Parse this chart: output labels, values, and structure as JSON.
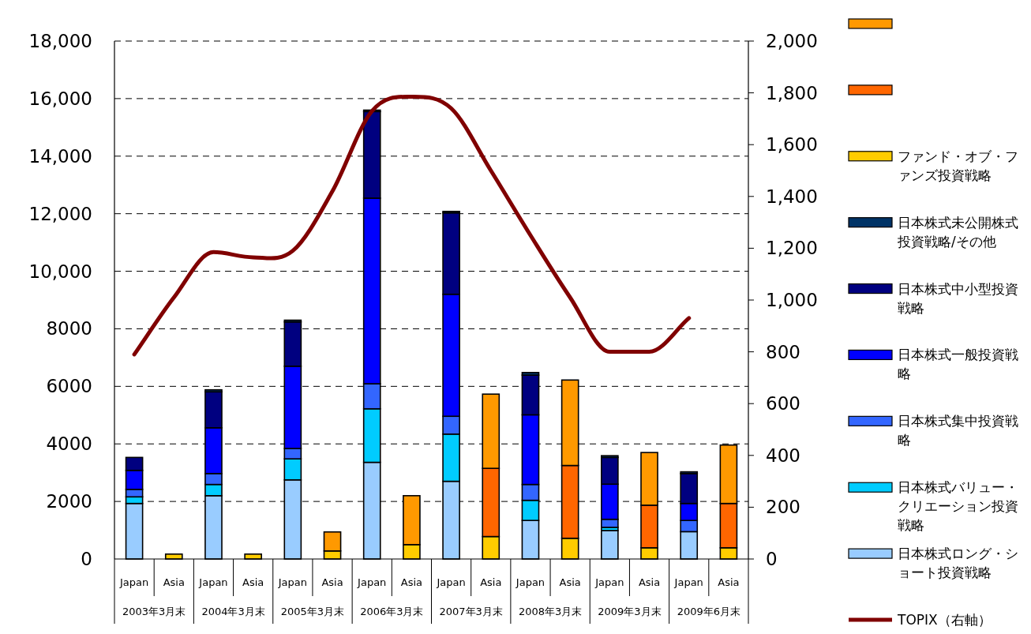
{
  "chart_data": {
    "type": "bar",
    "stacked": true,
    "categories": [
      "Japan",
      "Asia",
      "Japan",
      "Asia",
      "Japan",
      "Asia",
      "Japan",
      "Asia",
      "Japan",
      "Asia",
      "Japan",
      "Asia",
      "Japan",
      "Asia",
      "Japan",
      "Asia"
    ],
    "annotations": [
      "2003年3月末",
      "2004年3月末",
      "2005年3月末",
      "2006年3月末",
      "2007年3月末",
      "2008年3月末",
      "2009年3月末",
      "2009年6月末"
    ],
    "ylim": [
      0,
      18000
    ],
    "yticks": [
      0,
      2000,
      4000,
      6000,
      8000,
      {
        "value": 10000,
        "label": "10,000"
      },
      {
        "value": 12000,
        "label": "12,000"
      },
      {
        "value": 14000,
        "label": "14,000"
      },
      {
        "value": 16000,
        "label": "16,000"
      },
      {
        "value": 18000,
        "label": "18,000"
      }
    ],
    "y2lim": [
      0,
      2000
    ],
    "y2ticks": [
      0,
      200,
      400,
      600,
      800,
      {
        "value": 1000,
        "label": "1,000"
      },
      {
        "value": 1200,
        "label": "1,200"
      },
      {
        "value": 1400,
        "label": "1,400"
      },
      {
        "value": 1600,
        "label": "1,600"
      },
      {
        "value": 1800,
        "label": "1,800"
      },
      {
        "value": 2000,
        "label": "2,000"
      }
    ],
    "grid": "y",
    "legend": "right",
    "series": [
      {
        "name": "日本株式ロング・ショート投資戦略",
        "color": "#99ccff",
        "values": [
          1930,
          null,
          2200,
          null,
          2750,
          null,
          3360,
          null,
          2700,
          null,
          1340,
          null,
          990,
          null,
          950,
          null
        ]
      },
      {
        "name": "日本株式バリュー・クリエーション投資戦略",
        "color": "#00ccff",
        "values": [
          230,
          null,
          390,
          null,
          730,
          null,
          1860,
          null,
          1640,
          null,
          700,
          null,
          110,
          null,
          null,
          null
        ]
      },
      {
        "name": "日本株式集中投資戦略",
        "color": "#3366ff",
        "values": [
          260,
          null,
          380,
          null,
          360,
          null,
          870,
          null,
          620,
          null,
          550,
          null,
          280,
          null,
          390,
          null
        ]
      },
      {
        "name": "日本株式一般投資戦略",
        "color": "#0000ff",
        "values": [
          660,
          null,
          1590,
          null,
          2860,
          null,
          6450,
          null,
          4240,
          null,
          2420,
          null,
          1220,
          null,
          590,
          null
        ]
      },
      {
        "name": "日本株式中小型投資戦略",
        "color": "#000080",
        "values": [
          450,
          null,
          1250,
          null,
          1540,
          null,
          3010,
          null,
          2830,
          null,
          1380,
          null,
          930,
          null,
          1040,
          null
        ]
      },
      {
        "name": "日本株式未公開株式投資戦略/その他",
        "color": "#003366",
        "values": [
          0,
          null,
          70,
          null,
          60,
          null,
          50,
          null,
          50,
          null,
          90,
          null,
          60,
          null,
          60,
          null
        ]
      },
      {
        "name": "ファンド・オブ・ファンズ投資戦略",
        "color": "#ffcc00",
        "values": [
          null,
          170,
          null,
          170,
          null,
          280,
          null,
          500,
          null,
          780,
          null,
          720,
          null,
          390,
          null,
          390
        ]
      },
      {
        "color": "#ff6600",
        "values": [
          null,
          null,
          null,
          null,
          null,
          null,
          null,
          null,
          null,
          2370,
          null,
          2530,
          null,
          1480,
          null,
          1540
        ]
      },
      {
        "color": "#ff9900",
        "values": [
          null,
          null,
          null,
          null,
          null,
          660,
          null,
          1700,
          null,
          2580,
          null,
          2970,
          null,
          1830,
          null,
          2030
        ]
      },
      {
        "name": "TOPIX（右軸）",
        "type": "line",
        "axis": "y2",
        "color": "#800000",
        "values": [
          790,
          1010,
          1185,
          1165,
          1190,
          1420,
          1730,
          1785,
          1740,
          1500,
          1250,
          1010,
          800,
          800,
          930,
          null
        ]
      }
    ]
  }
}
